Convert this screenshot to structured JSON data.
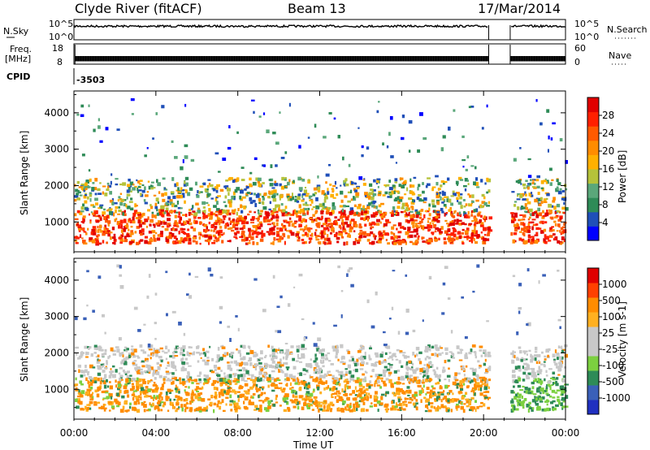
{
  "header": {
    "title": "Clyde River (fitACF)",
    "beam": "Beam 13",
    "date": "17/Mar/2014"
  },
  "status_panels": {
    "nsky_label": "N.Sky",
    "nsky_ticks": [
      "10^5",
      "10^0"
    ],
    "nsearch_label": "N.Search",
    "nsearch_ticks": [
      "10^5",
      "10^0"
    ],
    "freq_label_line1": "Freq.",
    "freq_label_line2": "[MHz]",
    "freq_ticks": [
      "18",
      "8"
    ],
    "nave_label": "Nave",
    "nave_ticks": [
      "60",
      "0"
    ],
    "cpid_label": "CPID",
    "cpid_value": "-3503",
    "data_gap_hours": [
      20.25,
      21.3
    ]
  },
  "chart_data": [
    {
      "type": "heatmap",
      "panel": "power",
      "ylabel": "Slant Range [km]",
      "xlabel": "",
      "xlim_hours": [
        0,
        24
      ],
      "ylim_km": [
        180,
        4600
      ],
      "y_ticks": [
        "1000",
        "2000",
        "3000",
        "4000"
      ],
      "colorbar_label": "Power [dB]",
      "colorbar_ticks": [
        "4",
        "8",
        "12",
        "16",
        "20",
        "24",
        "28"
      ],
      "colorbar_colors": [
        "#0000ff",
        "#1f4fb8",
        "#2e8b57",
        "#5aa77a",
        "#b5c23a",
        "#ffb000",
        "#ff8c00",
        "#ff5a00",
        "#ff2000",
        "#e00000"
      ],
      "data_gap_hours": [
        20.25,
        21.3
      ],
      "scatter_bands_km": {
        "dense_low": [
          400,
          1200
        ],
        "mid": [
          1200,
          2200
        ],
        "sparse_high": [
          2200,
          4400
        ]
      }
    },
    {
      "type": "heatmap",
      "panel": "velocity",
      "ylabel": "Slant Range [km]",
      "xlabel": "Time UT",
      "xlim_hours": [
        0,
        24
      ],
      "ylim_km": [
        180,
        4600
      ],
      "y_ticks": [
        "1000",
        "2000",
        "3000",
        "4000"
      ],
      "x_ticks": [
        "00:00",
        "04:00",
        "08:00",
        "12:00",
        "16:00",
        "20:00",
        "00:00"
      ],
      "colorbar_label": "Velocity [m s-1]",
      "colorbar_ticks": [
        "1000",
        "500",
        "100",
        "25",
        "-25",
        "-100",
        "-500",
        "-1000"
      ],
      "colorbar_colors": [
        "#2030c0",
        "#3a60b8",
        "#2e8b57",
        "#7cd040",
        "#c8c8c8",
        "#c8c8c8",
        "#ffb020",
        "#ff8c00",
        "#ff4000",
        "#e00000"
      ],
      "data_gap_hours": [
        20.25,
        21.3
      ]
    }
  ]
}
